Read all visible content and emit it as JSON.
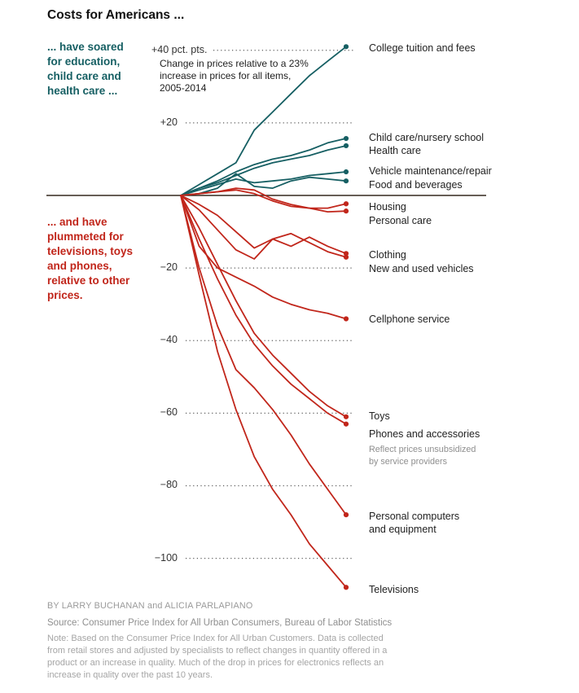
{
  "title": "Costs for Americans ...",
  "annotations": {
    "up": "... have soared\nfor education,\nchild care and\nhealth care ...",
    "down": "... and have\nplummeted for\ntelevisions, toys\nand phones,\nrelative to other\nprices."
  },
  "footer": {
    "byline": "BY LARRY BUCHANAN and ALICIA PARLAPIANO",
    "source": "Source: Consumer Price Index for All Urban Consumers, Bureau of Labor Statistics",
    "note": "Note: Based on the Consumer Price Index for All Urban Customers. Data is collected from retail stores and adjusted by specialists to reflect changes in quantity offered in a product or an increase in quality. Much of the drop in prices for electronics reflects an increase in quality over the past 10 years."
  },
  "colors": {
    "up": "#165f63",
    "down": "#c1261b",
    "grid_dots": "#5c5c5c",
    "zero_line": "#33281f"
  },
  "chart_data": {
    "type": "line",
    "subtitle": "Change in prices relative to a 23% increase in prices for all items, 2005-2014",
    "xlabel": "",
    "ylabel": "pct. pts.",
    "x": [
      2005,
      2006,
      2007,
      2008,
      2009,
      2010,
      2011,
      2012,
      2013,
      2014
    ],
    "x_range": [
      2005,
      2014
    ],
    "ylim": [
      -110,
      45
    ],
    "grid": "dotted horizontal at each labeled tick, solid line at zero",
    "legend_position": "direct labels at right of each line end",
    "yticks": [
      {
        "value": 40,
        "label": "+40 pct. pts."
      },
      {
        "value": 20,
        "label": "+20"
      },
      {
        "value": 0,
        "label": ""
      },
      {
        "value": -20,
        "label": "−20"
      },
      {
        "value": -40,
        "label": "−40"
      },
      {
        "value": -60,
        "label": "−60"
      },
      {
        "value": -80,
        "label": "−80"
      },
      {
        "value": -100,
        "label": "−100"
      }
    ],
    "series": [
      {
        "slug": "college-tuition",
        "name": "College tuition and fees",
        "group": "up",
        "values": [
          0,
          3,
          6,
          9,
          18,
          23,
          28,
          33,
          37,
          41
        ]
      },
      {
        "slug": "child-care",
        "name": "Child care/nursery school",
        "group": "up",
        "values": [
          0,
          2,
          4,
          6.5,
          8.5,
          10,
          11,
          12.5,
          14.5,
          15.7
        ]
      },
      {
        "slug": "health-care",
        "name": "Health care",
        "group": "up",
        "values": [
          0,
          2,
          3.5,
          5.5,
          7.5,
          9,
          10,
          11,
          12.5,
          13.7
        ]
      },
      {
        "slug": "vehicle-maintenance",
        "name": "Vehicle maintenance/repair",
        "group": "up",
        "values": [
          0,
          1.5,
          3,
          4.5,
          3.5,
          4,
          4.5,
          5.5,
          6,
          6.5
        ]
      },
      {
        "slug": "food-beverages",
        "name": "Food and beverages",
        "group": "up",
        "values": [
          0,
          0.5,
          2,
          6,
          2.5,
          2,
          4,
          5,
          4.5,
          4
        ]
      },
      {
        "slug": "housing",
        "name": "Housing",
        "group": "down",
        "values": [
          0,
          0.5,
          1,
          2,
          1.5,
          -1,
          -2.5,
          -3.5,
          -3.5,
          -2.3
        ]
      },
      {
        "slug": "personal-care",
        "name": "Personal care",
        "group": "down",
        "values": [
          0,
          0.5,
          1,
          1.5,
          0.5,
          -1.5,
          -3,
          -3.5,
          -4.5,
          -4.3
        ]
      },
      {
        "slug": "clothing",
        "name": "Clothing",
        "group": "down",
        "values": [
          0,
          -2.5,
          -5.5,
          -10,
          -14.5,
          -12,
          -14,
          -11.5,
          -14,
          -16
        ]
      },
      {
        "slug": "new-used-vehicles",
        "name": "New and used vehicles",
        "group": "down",
        "values": [
          0,
          -4,
          -9.5,
          -15,
          -17.5,
          -12,
          -10.5,
          -13,
          -15.5,
          -17
        ]
      },
      {
        "slug": "cellphone-service",
        "name": "Cellphone service",
        "group": "down",
        "values": [
          0,
          -14,
          -20,
          -22.5,
          -25,
          -28,
          -30,
          -31.5,
          -32.5,
          -34
        ]
      },
      {
        "slug": "toys",
        "name": "Toys",
        "group": "down",
        "values": [
          0,
          -9,
          -19,
          -29,
          -38,
          -44,
          -49,
          -54,
          -58,
          -61
        ]
      },
      {
        "slug": "phones-accessories",
        "name": "Phones and accessories",
        "group": "down",
        "values": [
          0,
          -12,
          -23,
          -33,
          -41,
          -47,
          -52,
          -56,
          -60,
          -63
        ],
        "footnote": "Reflect prices unsubsidized\nby service providers"
      },
      {
        "slug": "personal-computers",
        "name": "Personal computers\nand equipment",
        "group": "down",
        "values": [
          0,
          -20,
          -36,
          -48,
          -53,
          -59,
          -66,
          -74,
          -81,
          -88
        ]
      },
      {
        "slug": "televisions",
        "name": "Televisions",
        "group": "down",
        "values": [
          0,
          -22,
          -43,
          -59,
          -72,
          -81,
          -88,
          -96,
          -102,
          -108
        ]
      }
    ],
    "label_y": {
      "college-tuition": 51,
      "child-care": 161,
      "health-care": 177,
      "vehicle-maintenance": 202,
      "food-beverages": 219,
      "housing": 246,
      "personal-care": 263,
      "clothing": 305,
      "new-used-vehicles": 322,
      "cellphone-service": 384,
      "toys": 503,
      "phones-accessories": 525,
      "personal-computers": 626,
      "televisions": 716
    }
  }
}
